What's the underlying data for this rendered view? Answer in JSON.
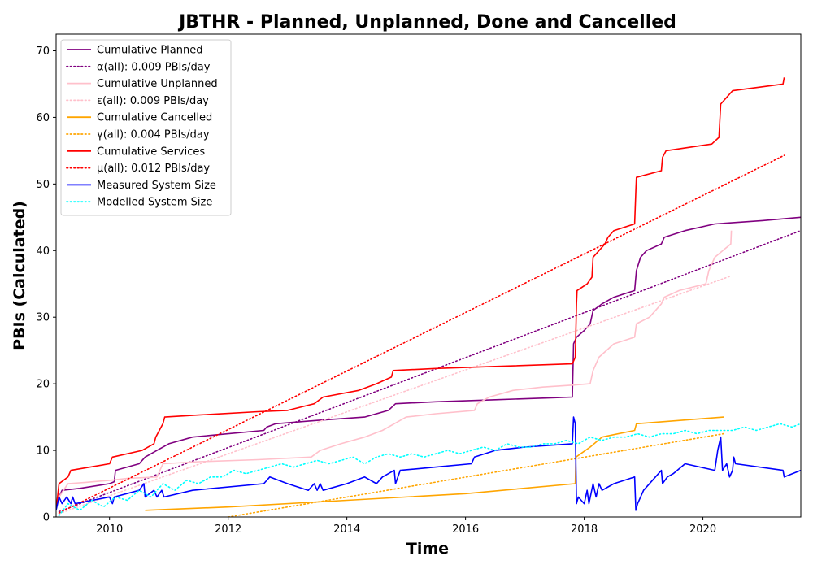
{
  "chart_data": {
    "type": "line",
    "title": "JBTHR - Planned, Unplanned, Done  and Cancelled",
    "xlabel": "Time",
    "ylabel": "PBIs (Calculated)",
    "xlim": [
      2009.1,
      2021.65
    ],
    "ylim": [
      0,
      72.5
    ],
    "xticks": [
      2010,
      2012,
      2014,
      2016,
      2018,
      2020
    ],
    "yticks": [
      0,
      10,
      20,
      30,
      40,
      50,
      60,
      70
    ],
    "legend_position": "upper-left",
    "series": [
      {
        "name": "Cumulative Planned",
        "color": "#800080",
        "style": "solid",
        "points": [
          [
            2009.15,
            3
          ],
          [
            2009.2,
            4
          ],
          [
            2009.5,
            4.3
          ],
          [
            2010.0,
            5
          ],
          [
            2010.08,
            5.3
          ],
          [
            2010.1,
            7
          ],
          [
            2010.5,
            8
          ],
          [
            2010.6,
            9
          ],
          [
            2010.8,
            10
          ],
          [
            2011.0,
            11
          ],
          [
            2011.4,
            12
          ],
          [
            2012.0,
            12.5
          ],
          [
            2012.6,
            13
          ],
          [
            2012.65,
            13.5
          ],
          [
            2012.8,
            14
          ],
          [
            2013.5,
            14.5
          ],
          [
            2014.3,
            15
          ],
          [
            2014.7,
            16
          ],
          [
            2014.82,
            17
          ],
          [
            2015.5,
            17.3
          ],
          [
            2016.5,
            17.6
          ],
          [
            2017.5,
            17.9
          ],
          [
            2017.8,
            18
          ],
          [
            2017.82,
            26
          ],
          [
            2017.87,
            27
          ],
          [
            2018.0,
            28
          ],
          [
            2018.1,
            29
          ],
          [
            2018.15,
            31
          ],
          [
            2018.3,
            32
          ],
          [
            2018.5,
            33
          ],
          [
            2018.85,
            34
          ],
          [
            2018.88,
            37
          ],
          [
            2018.95,
            39
          ],
          [
            2019.05,
            40
          ],
          [
            2019.3,
            41
          ],
          [
            2019.35,
            42
          ],
          [
            2019.7,
            43
          ],
          [
            2020.2,
            44
          ],
          [
            2021.0,
            44.5
          ],
          [
            2021.65,
            45
          ]
        ]
      },
      {
        "name": "α(all): 0.009 PBIs/day",
        "color": "#800080",
        "style": "dotted",
        "points": [
          [
            2009.15,
            0.8
          ],
          [
            2021.65,
            43
          ]
        ]
      },
      {
        "name": "Cumulative Unplanned",
        "color": "#ffc0cb",
        "style": "solid",
        "points": [
          [
            2009.15,
            3
          ],
          [
            2009.3,
            5
          ],
          [
            2009.6,
            5.2
          ],
          [
            2010.0,
            5.5
          ],
          [
            2010.3,
            5.8
          ],
          [
            2010.8,
            6
          ],
          [
            2010.85,
            7
          ],
          [
            2010.9,
            8
          ],
          [
            2011.5,
            8.3
          ],
          [
            2012.5,
            8.6
          ],
          [
            2013.4,
            9
          ],
          [
            2013.55,
            10
          ],
          [
            2013.9,
            11
          ],
          [
            2014.3,
            12
          ],
          [
            2014.6,
            13
          ],
          [
            2014.8,
            14
          ],
          [
            2015.0,
            15
          ],
          [
            2015.5,
            15.5
          ],
          [
            2016.15,
            16
          ],
          [
            2016.2,
            17
          ],
          [
            2016.4,
            18
          ],
          [
            2016.8,
            19
          ],
          [
            2017.3,
            19.5
          ],
          [
            2017.8,
            19.8
          ],
          [
            2018.1,
            20
          ],
          [
            2018.15,
            22
          ],
          [
            2018.25,
            24
          ],
          [
            2018.5,
            26
          ],
          [
            2018.85,
            27
          ],
          [
            2018.88,
            29
          ],
          [
            2019.1,
            30
          ],
          [
            2019.3,
            32
          ],
          [
            2019.35,
            33
          ],
          [
            2019.6,
            34
          ],
          [
            2020.05,
            35
          ],
          [
            2020.1,
            37
          ],
          [
            2020.2,
            39
          ],
          [
            2020.47,
            41
          ],
          [
            2020.48,
            43
          ]
        ]
      },
      {
        "name": "ε(all): 0.009 PBIs/day",
        "color": "#ffc0cb",
        "style": "dotted",
        "points": [
          [
            2009.15,
            0.5
          ],
          [
            2020.48,
            36.2
          ]
        ]
      },
      {
        "name": "Cumulative Cancelled",
        "color": "#ffa500",
        "style": "solid",
        "points": [
          [
            2010.6,
            1
          ],
          [
            2012.0,
            1.5
          ],
          [
            2014.0,
            2.5
          ],
          [
            2016.0,
            3.5
          ],
          [
            2017.85,
            5
          ],
          [
            2017.86,
            9
          ],
          [
            2018.1,
            10.5
          ],
          [
            2018.3,
            12
          ],
          [
            2018.85,
            13
          ],
          [
            2018.88,
            14
          ],
          [
            2020.35,
            15
          ]
        ]
      },
      {
        "name": "γ(all): 0.004 PBIs/day",
        "color": "#ffa500",
        "style": "dotted",
        "points": [
          [
            2012.0,
            0
          ],
          [
            2020.35,
            12.5
          ]
        ]
      },
      {
        "name": "Cumulative Services",
        "color": "#ff0000",
        "style": "solid",
        "points": [
          [
            2009.1,
            1
          ],
          [
            2009.15,
            5
          ],
          [
            2009.3,
            6
          ],
          [
            2009.35,
            7
          ],
          [
            2010.0,
            8
          ],
          [
            2010.05,
            9
          ],
          [
            2010.55,
            10
          ],
          [
            2010.75,
            11
          ],
          [
            2010.78,
            12
          ],
          [
            2010.9,
            14
          ],
          [
            2010.93,
            15
          ],
          [
            2011.5,
            15.3
          ],
          [
            2012.5,
            15.8
          ],
          [
            2013.0,
            16
          ],
          [
            2013.45,
            17
          ],
          [
            2013.6,
            18
          ],
          [
            2014.2,
            19
          ],
          [
            2014.5,
            20
          ],
          [
            2014.75,
            21
          ],
          [
            2014.78,
            22
          ],
          [
            2015.5,
            22.3
          ],
          [
            2016.5,
            22.6
          ],
          [
            2017.8,
            23
          ],
          [
            2017.85,
            24
          ],
          [
            2017.87,
            32
          ],
          [
            2017.88,
            34
          ],
          [
            2018.05,
            35
          ],
          [
            2018.13,
            36
          ],
          [
            2018.15,
            39
          ],
          [
            2018.25,
            40
          ],
          [
            2018.35,
            41
          ],
          [
            2018.4,
            42
          ],
          [
            2018.5,
            43
          ],
          [
            2018.85,
            44
          ],
          [
            2018.87,
            49
          ],
          [
            2018.88,
            51
          ],
          [
            2019.3,
            52
          ],
          [
            2019.32,
            54
          ],
          [
            2019.38,
            55
          ],
          [
            2020.15,
            56
          ],
          [
            2020.27,
            57
          ],
          [
            2020.3,
            62
          ],
          [
            2020.4,
            63
          ],
          [
            2020.5,
            64
          ],
          [
            2021.35,
            65
          ],
          [
            2021.37,
            66
          ]
        ]
      },
      {
        "name": "μ(all): 0.012 PBIs/day",
        "color": "#ff0000",
        "style": "dotted",
        "points": [
          [
            2009.15,
            0.6
          ],
          [
            2021.37,
            54.3
          ]
        ]
      },
      {
        "name": "Measured System Size",
        "color": "#0000ff",
        "style": "solid",
        "points": [
          [
            2009.1,
            1
          ],
          [
            2009.15,
            3
          ],
          [
            2009.2,
            2
          ],
          [
            2009.28,
            3
          ],
          [
            2009.35,
            2
          ],
          [
            2009.38,
            3
          ],
          [
            2009.42,
            2
          ],
          [
            2010.0,
            3
          ],
          [
            2010.05,
            2
          ],
          [
            2010.08,
            3
          ],
          [
            2010.5,
            4
          ],
          [
            2010.58,
            5
          ],
          [
            2010.6,
            3
          ],
          [
            2010.75,
            4
          ],
          [
            2010.8,
            3
          ],
          [
            2010.88,
            4
          ],
          [
            2010.92,
            3
          ],
          [
            2011.4,
            4
          ],
          [
            2012.6,
            5
          ],
          [
            2012.7,
            6
          ],
          [
            2013.0,
            5
          ],
          [
            2013.35,
            4
          ],
          [
            2013.45,
            5
          ],
          [
            2013.5,
            4
          ],
          [
            2013.55,
            5
          ],
          [
            2013.6,
            4
          ],
          [
            2014.0,
            5
          ],
          [
            2014.3,
            6
          ],
          [
            2014.5,
            5
          ],
          [
            2014.6,
            6
          ],
          [
            2014.8,
            7
          ],
          [
            2014.82,
            5
          ],
          [
            2014.9,
            7
          ],
          [
            2015.5,
            7.5
          ],
          [
            2016.1,
            8
          ],
          [
            2016.15,
            9
          ],
          [
            2016.5,
            10
          ],
          [
            2017.0,
            10.5
          ],
          [
            2017.8,
            11
          ],
          [
            2017.82,
            15
          ],
          [
            2017.85,
            14
          ],
          [
            2017.87,
            2
          ],
          [
            2017.9,
            3
          ],
          [
            2018.0,
            2
          ],
          [
            2018.05,
            4
          ],
          [
            2018.08,
            2
          ],
          [
            2018.15,
            5
          ],
          [
            2018.2,
            3
          ],
          [
            2018.25,
            5
          ],
          [
            2018.3,
            4
          ],
          [
            2018.5,
            5
          ],
          [
            2018.85,
            6
          ],
          [
            2018.87,
            1
          ],
          [
            2018.9,
            2
          ],
          [
            2019.0,
            4
          ],
          [
            2019.2,
            6
          ],
          [
            2019.3,
            7
          ],
          [
            2019.32,
            5
          ],
          [
            2019.4,
            6
          ],
          [
            2019.5,
            6.5
          ],
          [
            2019.7,
            8
          ],
          [
            2020.2,
            7
          ],
          [
            2020.25,
            10
          ],
          [
            2020.3,
            12
          ],
          [
            2020.33,
            7
          ],
          [
            2020.4,
            8
          ],
          [
            2020.45,
            6
          ],
          [
            2020.5,
            7
          ],
          [
            2020.52,
            9
          ],
          [
            2020.55,
            8
          ],
          [
            2021.35,
            7
          ],
          [
            2021.37,
            6
          ],
          [
            2021.65,
            7
          ]
        ]
      },
      {
        "name": "Modelled System Size",
        "color": "#00ffff",
        "style": "dotted",
        "points": [
          [
            2009.15,
            0.2
          ],
          [
            2009.3,
            2
          ],
          [
            2009.5,
            1
          ],
          [
            2009.7,
            2.5
          ],
          [
            2009.9,
            1.5
          ],
          [
            2010.1,
            3
          ],
          [
            2010.3,
            2.5
          ],
          [
            2010.5,
            4
          ],
          [
            2010.7,
            3
          ],
          [
            2010.9,
            5
          ],
          [
            2011.1,
            4
          ],
          [
            2011.3,
            5.5
          ],
          [
            2011.5,
            5
          ],
          [
            2011.7,
            6
          ],
          [
            2011.9,
            6
          ],
          [
            2012.1,
            7
          ],
          [
            2012.3,
            6.5
          ],
          [
            2012.5,
            7
          ],
          [
            2012.7,
            7.5
          ],
          [
            2012.9,
            8
          ],
          [
            2013.1,
            7.5
          ],
          [
            2013.3,
            8
          ],
          [
            2013.5,
            8.5
          ],
          [
            2013.7,
            8
          ],
          [
            2013.9,
            8.5
          ],
          [
            2014.1,
            9
          ],
          [
            2014.3,
            8
          ],
          [
            2014.5,
            9
          ],
          [
            2014.7,
            9.5
          ],
          [
            2014.9,
            9
          ],
          [
            2015.1,
            9.5
          ],
          [
            2015.3,
            9
          ],
          [
            2015.5,
            9.5
          ],
          [
            2015.7,
            10
          ],
          [
            2015.9,
            9.5
          ],
          [
            2016.1,
            10
          ],
          [
            2016.3,
            10.5
          ],
          [
            2016.5,
            10
          ],
          [
            2016.7,
            11
          ],
          [
            2016.9,
            10.5
          ],
          [
            2017.1,
            10.5
          ],
          [
            2017.3,
            11
          ],
          [
            2017.5,
            11
          ],
          [
            2017.7,
            11.5
          ],
          [
            2017.9,
            11
          ],
          [
            2018.1,
            12
          ],
          [
            2018.3,
            11.5
          ],
          [
            2018.5,
            12
          ],
          [
            2018.7,
            12
          ],
          [
            2018.9,
            12.5
          ],
          [
            2019.1,
            12
          ],
          [
            2019.3,
            12.5
          ],
          [
            2019.5,
            12.5
          ],
          [
            2019.7,
            13
          ],
          [
            2019.9,
            12.5
          ],
          [
            2020.1,
            13
          ],
          [
            2020.3,
            13
          ],
          [
            2020.5,
            13
          ],
          [
            2020.7,
            13.5
          ],
          [
            2020.9,
            13
          ],
          [
            2021.1,
            13.5
          ],
          [
            2021.3,
            14
          ],
          [
            2021.5,
            13.5
          ],
          [
            2021.65,
            14
          ]
        ]
      }
    ]
  }
}
